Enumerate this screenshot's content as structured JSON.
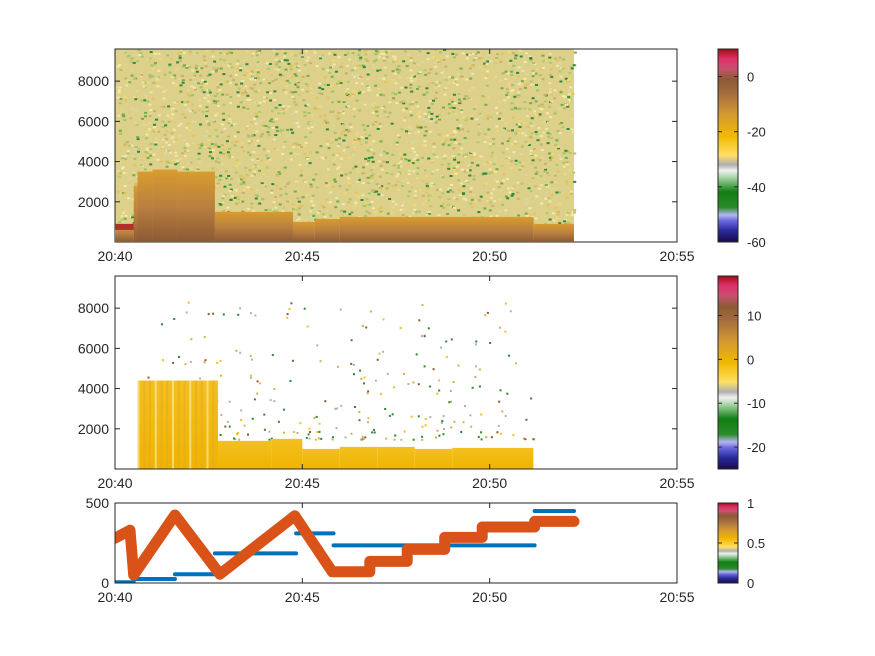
{
  "chart_data": [
    {
      "type": "heatmap",
      "title": "",
      "xlabel": "",
      "ylabel": "",
      "x_tick_labels": [
        "20:40",
        "20:45",
        "20:50",
        "20:55"
      ],
      "x_range": [
        "20:40",
        "20:55"
      ],
      "y_tick_labels": [
        "2000",
        "4000",
        "6000",
        "8000"
      ],
      "y_ticks": [
        2000,
        4000,
        6000,
        8000
      ],
      "y_range": [
        0,
        9600
      ],
      "data_end_time": "20:52:15",
      "colorbar": {
        "ticks": [
          0,
          -20,
          -40,
          -60
        ],
        "tick_labels": [
          "0",
          "-20",
          "-40",
          "-60"
        ],
        "range": [
          -60,
          10
        ]
      },
      "surface_layer": [
        {
          "start": "20:40",
          "end": "20:40:30",
          "top": 900
        },
        {
          "start": "20:40:30",
          "end": "20:40:36",
          "top": 2800
        },
        {
          "start": "20:40:36",
          "end": "20:41",
          "top": 3500
        },
        {
          "start": "20:41",
          "end": "20:41:40",
          "top": 3600
        },
        {
          "start": "20:41:40",
          "end": "20:42:40",
          "top": 3500
        },
        {
          "start": "20:42:40",
          "end": "20:44:45",
          "top": 1500
        },
        {
          "start": "20:44:45",
          "end": "20:45:20",
          "top": 1000
        },
        {
          "start": "20:45:20",
          "end": "20:46",
          "top": 1150
        },
        {
          "start": "20:46",
          "end": "20:51:10",
          "top": 1250
        },
        {
          "start": "20:51:10",
          "end": "20:52:15",
          "top": 900
        }
      ]
    },
    {
      "type": "heatmap",
      "title": "",
      "xlabel": "",
      "ylabel": "",
      "x_tick_labels": [
        "20:40",
        "20:45",
        "20:50",
        "20:55"
      ],
      "x_range": [
        "20:40",
        "20:55"
      ],
      "y_tick_labels": [
        "2000",
        "4000",
        "6000",
        "8000"
      ],
      "y_ticks": [
        2000,
        4000,
        6000,
        8000
      ],
      "y_range": [
        0,
        9600
      ],
      "data_start_time": "20:40:36",
      "data_end_time": "20:51:10",
      "colorbar": {
        "ticks": [
          10,
          0,
          -10,
          -20
        ],
        "tick_labels": [
          "10",
          "0",
          "-10",
          "-20"
        ],
        "range": [
          -25,
          19
        ]
      },
      "surface_layer": [
        {
          "start": "20:40:36",
          "end": "20:42:45",
          "top": 4400
        },
        {
          "start": "20:42:45",
          "end": "20:44:10",
          "top": 1400
        },
        {
          "start": "20:44:10",
          "end": "20:45",
          "top": 1500
        },
        {
          "start": "20:45",
          "end": "20:46",
          "top": 1000
        },
        {
          "start": "20:46",
          "end": "20:47",
          "top": 1100
        },
        {
          "start": "20:47",
          "end": "20:48",
          "top": 1100
        },
        {
          "start": "20:48",
          "end": "20:49",
          "top": 1000
        },
        {
          "start": "20:49",
          "end": "20:51:10",
          "top": 1050
        }
      ]
    },
    {
      "type": "line",
      "title": "",
      "xlabel": "",
      "ylabel": "",
      "x_tick_labels": [
        "20:40",
        "20:45",
        "20:50",
        "20:55"
      ],
      "x_range": [
        "20:40",
        "20:55"
      ],
      "y_tick_labels": [
        "0",
        "500"
      ],
      "y_ticks": [
        0,
        500
      ],
      "y_range": [
        0,
        500
      ],
      "colorbar": {
        "ticks": [
          1,
          0.5,
          0
        ],
        "tick_labels": [
          "1",
          "0.5",
          "0"
        ],
        "range": [
          0,
          1
        ]
      },
      "series": [
        {
          "color": "#0072bd",
          "style": "segments",
          "segments": [
            {
              "start": "20:40",
              "end": "20:40:30",
              "y": 5
            },
            {
              "start": "20:40:30",
              "end": "20:41:36",
              "y": 25
            },
            {
              "start": "20:41:36",
              "end": "20:42:40",
              "y": 55
            },
            {
              "start": "20:42:40",
              "end": "20:44:50",
              "y": 185
            },
            {
              "start": "20:44:50",
              "end": "20:45:50",
              "y": 310
            },
            {
              "start": "20:45:50",
              "end": "20:51:12",
              "y": 235
            },
            {
              "start": "20:51:12",
              "end": "20:52:15",
              "y": 450
            }
          ]
        },
        {
          "color": "#d95319",
          "style": "thick",
          "points": [
            {
              "t": "20:40",
              "y": 280
            },
            {
              "t": "20:40:24",
              "y": 330
            },
            {
              "t": "20:40:30",
              "y": 50
            },
            {
              "t": "20:41:36",
              "y": 425
            },
            {
              "t": "20:42:48",
              "y": 55
            },
            {
              "t": "20:44:48",
              "y": 420
            },
            {
              "t": "20:45:48",
              "y": 70
            },
            {
              "t": "20:46:48",
              "y": 70
            },
            {
              "t": "20:46:48",
              "y": 135
            },
            {
              "t": "20:47:48",
              "y": 135
            },
            {
              "t": "20:47:48",
              "y": 210
            },
            {
              "t": "20:48:48",
              "y": 210
            },
            {
              "t": "20:48:48",
              "y": 285
            },
            {
              "t": "20:49:48",
              "y": 285
            },
            {
              "t": "20:49:48",
              "y": 350
            },
            {
              "t": "20:51:12",
              "y": 350
            },
            {
              "t": "20:51:12",
              "y": 385
            },
            {
              "t": "20:52:15",
              "y": 385
            }
          ]
        }
      ]
    }
  ]
}
